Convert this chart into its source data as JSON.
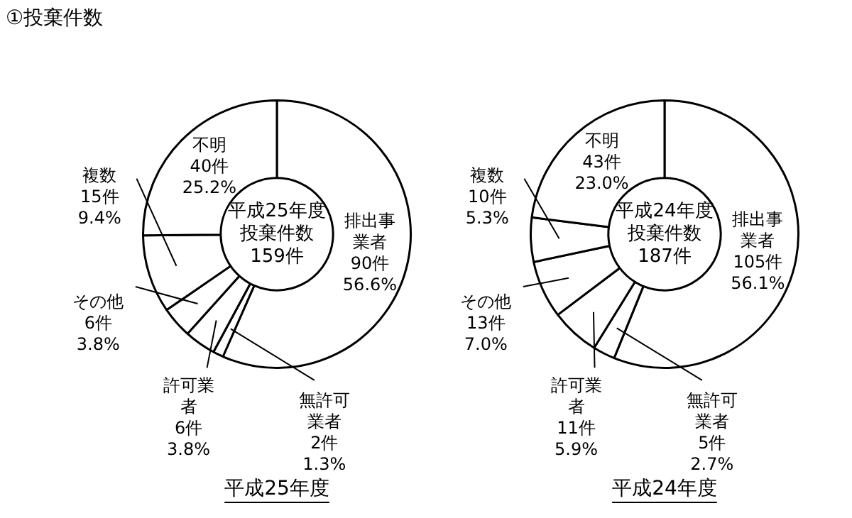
{
  "chart_data": [
    {
      "type": "donut",
      "title": "①投棄件数",
      "categories": [
        "排出事業者",
        "無許可業者",
        "許可業者",
        "その他",
        "複数",
        "不明"
      ],
      "values": [
        90,
        2,
        6,
        6,
        15,
        40
      ],
      "colors": [
        "#ffffff",
        "#ffffff",
        "#ffffff",
        "#ffffff",
        "#ffffff",
        "#ffffff"
      ],
      "value_labels": [
        "90件\n56.6%",
        "2件\n1.3%",
        "6件\n3.8%",
        "6件\n3.8%",
        "15件\n9.4%",
        "40件\n25.2%"
      ],
      "legend": false,
      "annotations": [
        "平成25年度投棄件数\n159件",
        "平成25年度"
      ]
    },
    {
      "type": "donut",
      "categories": [
        "排出事業者",
        "無許可業者",
        "許可業者",
        "その他",
        "複数",
        "不明"
      ],
      "values": [
        105,
        5,
        11,
        13,
        10,
        43
      ],
      "colors": [
        "#ffffff",
        "#ffffff",
        "#ffffff",
        "#ffffff",
        "#ffffff",
        "#ffffff"
      ],
      "value_labels": [
        "105件\n56.1%",
        "5件\n2.7%",
        "11件\n5.9%",
        "13件\n7.0%",
        "10件\n5.3%",
        "43件\n23.0%"
      ],
      "legend": false,
      "annotations": [
        "平成24年度投棄件数\n187件",
        "平成24年度"
      ]
    }
  ]
}
